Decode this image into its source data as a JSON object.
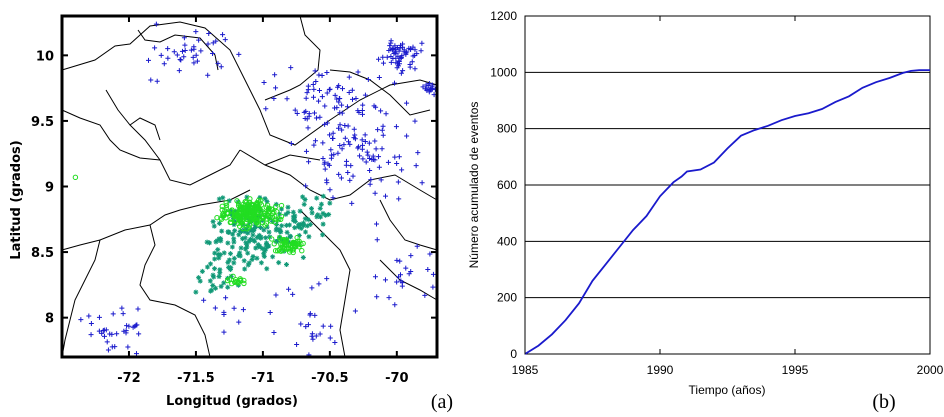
{
  "chart_data": [
    {
      "type": "scatter",
      "panel_label": "(a)",
      "xlabel": "Longitud (grados)",
      "ylabel": "Latitud (grados)",
      "xlim": [
        -72.5,
        -69.7
      ],
      "ylim": [
        7.7,
        10.3
      ],
      "xticks": [
        "-72",
        "-71.5",
        "-71",
        "-70.5",
        "-70"
      ],
      "xtick_values": [
        -72,
        -71.5,
        -71,
        -70.5,
        -70
      ],
      "yticks": [
        "8",
        "8.5",
        "9",
        "9.5",
        "10"
      ],
      "ytick_values": [
        8,
        8.5,
        9,
        9.5,
        10
      ],
      "grid": false,
      "series": [
        {
          "marker": "+",
          "color": "#1a1acc",
          "clusters": [
            {
              "center": [
                -71.55,
                10.0
              ],
              "spread": [
                0.5,
                0.2
              ],
              "count": 40
            },
            {
              "center": [
                -70.5,
                9.65
              ],
              "spread": [
                0.4,
                0.2
              ],
              "count": 80
            },
            {
              "center": [
                -70.3,
                9.25
              ],
              "spread": [
                0.4,
                0.25
              ],
              "count": 90
            },
            {
              "center": [
                -69.97,
                10.0
              ],
              "spread": [
                0.12,
                0.12
              ],
              "count": 60
            },
            {
              "center": [
                -69.75,
                9.75
              ],
              "spread": [
                0.05,
                0.05
              ],
              "count": 20
            },
            {
              "center": [
                -70.8,
                8.0
              ],
              "spread": [
                0.5,
                0.25
              ],
              "count": 35
            },
            {
              "center": [
                -72.1,
                7.9
              ],
              "spread": [
                0.2,
                0.15
              ],
              "count": 35
            },
            {
              "center": [
                -69.95,
                8.3
              ],
              "spread": [
                0.25,
                0.3
              ],
              "count": 25
            }
          ]
        },
        {
          "marker": "*",
          "color": "#119977",
          "clusters": [
            {
              "center": [
                -71.1,
                8.62
              ],
              "spread": [
                0.3,
                0.25
              ],
              "count": 150
            },
            {
              "center": [
                -70.7,
                8.75
              ],
              "spread": [
                0.2,
                0.15
              ],
              "count": 50
            },
            {
              "center": [
                -71.35,
                8.3
              ],
              "spread": [
                0.2,
                0.2
              ],
              "count": 30
            }
          ]
        },
        {
          "marker": "o",
          "color": "#22dd22",
          "clusters": [
            {
              "center": [
                -71.1,
                8.8
              ],
              "spread": [
                0.18,
                0.09
              ],
              "count": 220
            },
            {
              "center": [
                -70.8,
                8.55
              ],
              "spread": [
                0.1,
                0.05
              ],
              "count": 60
            },
            {
              "center": [
                -71.2,
                8.28
              ],
              "spread": [
                0.06,
                0.03
              ],
              "count": 15
            }
          ],
          "points": [
            [
              -72.4,
              9.07
            ]
          ]
        }
      ]
    },
    {
      "type": "line",
      "panel_label": "(b)",
      "xlabel": "Tiempo (años)",
      "ylabel": "Número acumulado de eventos",
      "xlim": [
        1985,
        2000
      ],
      "ylim": [
        0,
        1200
      ],
      "xticks": [
        "1985",
        "1990",
        "1995",
        "2000"
      ],
      "xtick_values": [
        1985,
        1990,
        1995,
        2000
      ],
      "yticks": [
        "0",
        "200",
        "400",
        "600",
        "800",
        "1000",
        "1200"
      ],
      "ytick_values": [
        0,
        200,
        400,
        600,
        800,
        1000,
        1200
      ],
      "grid": "horizontal",
      "color": "#1a1acc",
      "series": [
        {
          "x": [
            1985.0,
            1985.5,
            1986.0,
            1986.5,
            1987.0,
            1987.5,
            1988.0,
            1988.5,
            1989.0,
            1989.5,
            1990.0,
            1990.5,
            1990.8,
            1991.0,
            1991.5,
            1992.0,
            1992.5,
            1993.0,
            1993.5,
            1994.0,
            1994.5,
            1995.0,
            1995.5,
            1996.0,
            1996.5,
            1997.0,
            1997.5,
            1998.0,
            1998.5,
            1999.0,
            1999.3,
            1999.6,
            2000.0
          ],
          "y": [
            0,
            30,
            70,
            120,
            180,
            260,
            320,
            380,
            440,
            490,
            560,
            610,
            630,
            648,
            655,
            680,
            730,
            775,
            795,
            810,
            830,
            845,
            855,
            870,
            895,
            915,
            945,
            965,
            980,
            998,
            1005,
            1008,
            1008
          ]
        }
      ]
    }
  ]
}
